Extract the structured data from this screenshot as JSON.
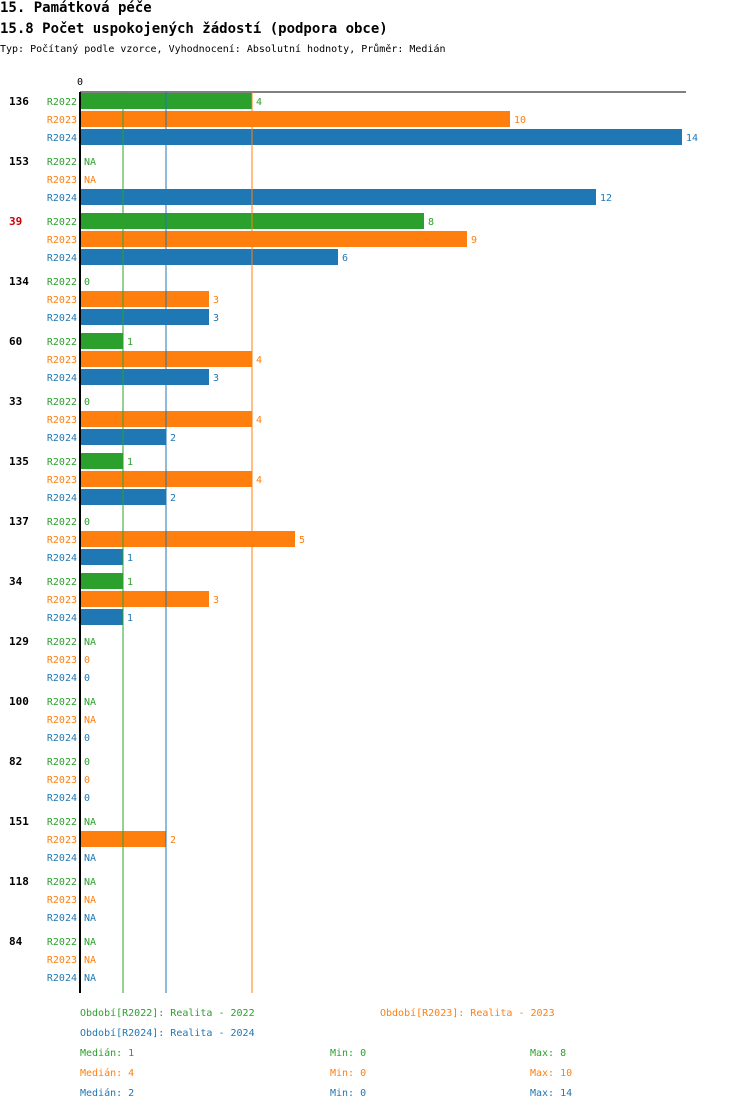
{
  "header": {
    "section": "15. Památková péče",
    "title": "15.8 Počet uspokojených žádostí (podpora obce)",
    "subtitle": "Typ: Počítaný podle vzorce, Vyhodnocení: Absolutní hodnoty, Průměr: Medián"
  },
  "colors": {
    "R2022": "#2ca02c",
    "R2023": "#ff7f0e",
    "R2024": "#1f77b4",
    "highlight": "#cc0000"
  },
  "chart_data": {
    "type": "bar",
    "orientation": "horizontal",
    "axis_zero_label": "0",
    "xlim": [
      0,
      14
    ],
    "series_names": [
      "R2022",
      "R2023",
      "R2024"
    ],
    "categories": [
      {
        "label": "136",
        "highlight": false,
        "values": [
          4,
          10,
          14
        ]
      },
      {
        "label": "153",
        "highlight": false,
        "values": [
          null,
          null,
          12
        ]
      },
      {
        "label": "39",
        "highlight": true,
        "values": [
          8,
          9,
          6
        ]
      },
      {
        "label": "134",
        "highlight": false,
        "values": [
          0,
          3,
          3
        ]
      },
      {
        "label": "60",
        "highlight": false,
        "values": [
          1,
          4,
          3
        ]
      },
      {
        "label": "33",
        "highlight": false,
        "values": [
          0,
          4,
          2
        ]
      },
      {
        "label": "135",
        "highlight": false,
        "values": [
          1,
          4,
          2
        ]
      },
      {
        "label": "137",
        "highlight": false,
        "values": [
          0,
          5,
          1
        ]
      },
      {
        "label": "34",
        "highlight": false,
        "values": [
          1,
          3,
          1
        ]
      },
      {
        "label": "129",
        "highlight": false,
        "values": [
          null,
          0,
          0
        ]
      },
      {
        "label": "100",
        "highlight": false,
        "values": [
          null,
          null,
          0
        ]
      },
      {
        "label": "82",
        "highlight": false,
        "values": [
          0,
          0,
          0
        ]
      },
      {
        "label": "151",
        "highlight": false,
        "values": [
          null,
          2,
          null
        ]
      },
      {
        "label": "118",
        "highlight": false,
        "values": [
          null,
          null,
          null
        ]
      },
      {
        "label": "84",
        "highlight": false,
        "values": [
          null,
          null,
          null
        ]
      }
    ],
    "na_label": "NA",
    "median_lines": [
      {
        "series": "R2022",
        "value": 1
      },
      {
        "series": "R2024",
        "value": 2
      },
      {
        "series": "R2023",
        "value": 4
      }
    ]
  },
  "legend": {
    "periods": [
      {
        "text": "Období[R2022]: Realita - 2022"
      },
      {
        "text": "Období[R2023]: Realita - 2023"
      },
      {
        "text": "Období[R2024]: Realita - 2024"
      }
    ],
    "stats": [
      {
        "median": "Medián: 1",
        "min": "Min: 0",
        "max": "Max: 8"
      },
      {
        "median": "Medián: 4",
        "min": "Min: 0",
        "max": "Max: 10"
      },
      {
        "median": "Medián: 2",
        "min": "Min: 0",
        "max": "Max: 14"
      }
    ]
  }
}
